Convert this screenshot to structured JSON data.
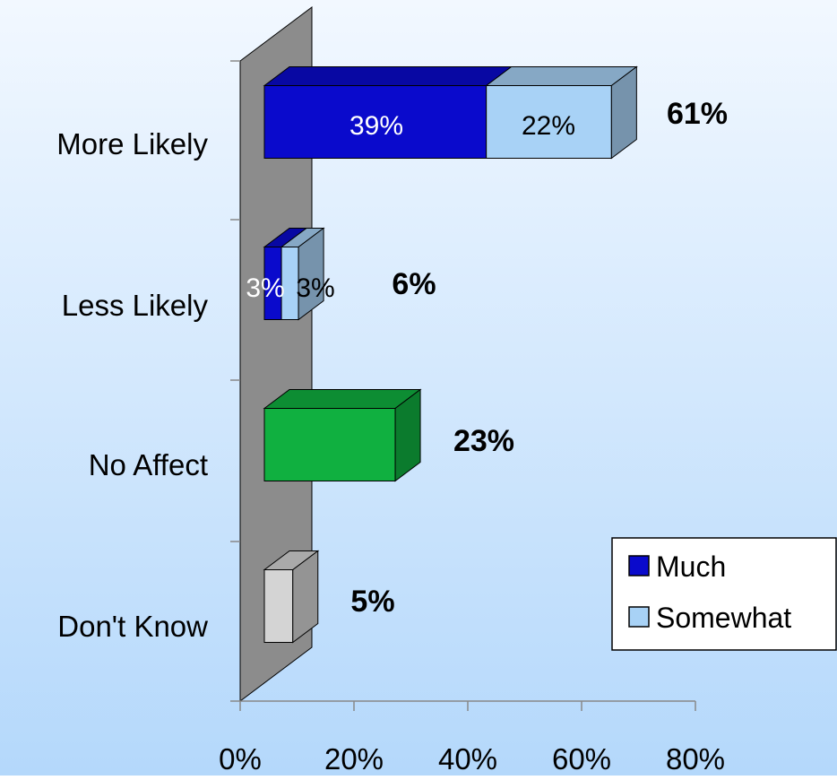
{
  "chart_data": {
    "type": "bar",
    "orientation": "horizontal",
    "stacked": true,
    "categories": [
      "More Likely",
      "Less Likely",
      "No Affect",
      "Don't Know"
    ],
    "series": [
      {
        "name": "Much",
        "values": [
          39,
          3,
          null,
          null
        ],
        "color": "#0a0acc"
      },
      {
        "name": "Somewhat",
        "values": [
          22,
          3,
          null,
          null
        ],
        "color": "#a8d2f6"
      },
      {
        "values": [
          null,
          null,
          23,
          null
        ],
        "color": "#10b040"
      },
      {
        "values": [
          null,
          null,
          null,
          5
        ],
        "color": "#d4d4d4"
      }
    ],
    "segment_labels": [
      [
        "39%",
        "22%"
      ],
      [
        "3%",
        "3%"
      ],
      [],
      []
    ],
    "total_labels": [
      "61%",
      "6%",
      "23%",
      "5%"
    ],
    "x_ticks": [
      "0%",
      "20%",
      "40%",
      "60%",
      "80%"
    ],
    "xlim": [
      0,
      80
    ],
    "legend": {
      "placement": "bottom-right",
      "entries": [
        {
          "label": "Much",
          "color": "#0a0acc"
        },
        {
          "label": "Somewhat",
          "color": "#a8d2f6"
        }
      ]
    },
    "title": "",
    "xlabel": "",
    "ylabel": "",
    "grid": false
  }
}
